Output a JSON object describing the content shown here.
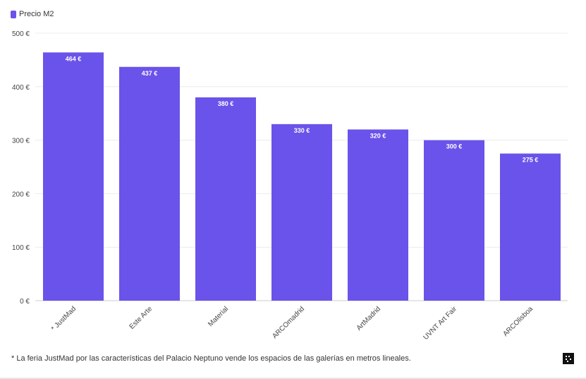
{
  "chart_data": {
    "type": "bar",
    "categories": [
      "* JustMad",
      "Este Arte",
      "Material",
      "ARCOmadrid",
      "ArtMadrid",
      "UVNT Art Fair",
      "ARCOlisboa"
    ],
    "series": [
      {
        "name": "Precio M2",
        "values": [
          464,
          437,
          380,
          330,
          320,
          300,
          275
        ]
      }
    ],
    "data_labels": [
      "464 €",
      "437 €",
      "380 €",
      "330 €",
      "320 €",
      "300 €",
      "275 €"
    ],
    "y_ticks": [
      0,
      100,
      200,
      300,
      400,
      500
    ],
    "y_tick_labels": [
      "0 €",
      "100 €",
      "200 €",
      "300 €",
      "400 €",
      "500 €"
    ],
    "ylim": [
      0,
      500
    ],
    "grid": true,
    "legend_position": "top-left",
    "bar_color": "#6a53ea"
  },
  "legend": {
    "label": "Precio M2"
  },
  "footnote": "* La feria JustMad por las características del Palacio Neptuno vende los espacios de las galerías en metros lineales."
}
